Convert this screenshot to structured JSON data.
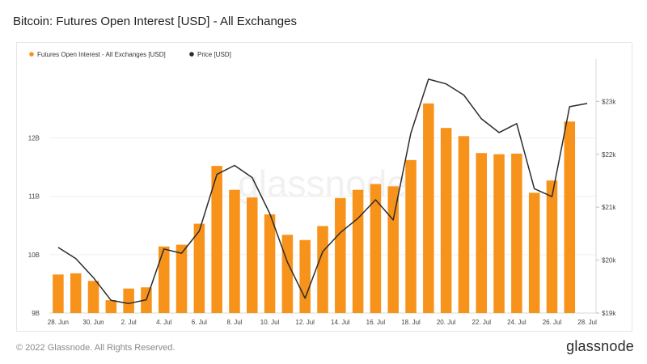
{
  "header": {
    "title": "Bitcoin: Futures Open Interest [USD] - All Exchanges"
  },
  "footer": {
    "copyright": "© 2022 Glassnode. All Rights Reserved.",
    "brand": "glassnode"
  },
  "watermark": "glassnode",
  "colors": {
    "bar": "#f7931a",
    "line": "#2b2b2b",
    "grid": "#efefef"
  },
  "chart_data": {
    "type": "bar",
    "title": "Bitcoin: Futures Open Interest [USD] - All Exchanges",
    "categories": [
      "28 Jun",
      "29 Jun",
      "30 Jun",
      "1 Jul",
      "2 Jul",
      "3 Jul",
      "4 Jul",
      "5 Jul",
      "6 Jul",
      "7 Jul",
      "8 Jul",
      "9 Jul",
      "10 Jul",
      "11 Jul",
      "12 Jul",
      "13 Jul",
      "14 Jul",
      "15 Jul",
      "16 Jul",
      "17 Jul",
      "18 Jul",
      "19 Jul",
      "20 Jul",
      "21 Jul",
      "22 Jul",
      "23 Jul",
      "24 Jul",
      "25 Jul",
      "26 Jul",
      "27 Jul",
      "28 Jul"
    ],
    "x_tick_labels": [
      "28. Jun",
      "30. Jun",
      "2. Jul",
      "4. Jul",
      "6. Jul",
      "8. Jul",
      "10. Jul",
      "12. Jul",
      "14. Jul",
      "16. Jul",
      "18. Jul",
      "20. Jul",
      "22. Jul",
      "24. Jul",
      "26. Jul",
      "28. Jul"
    ],
    "legend": {
      "placement": "top-left",
      "entries": [
        "Futures Open Interest - All Exchanges [USD]",
        "Price [USD]"
      ]
    },
    "y_left": {
      "tick_labels": [
        "9B",
        "10B",
        "11B",
        "12B"
      ],
      "tick_values": [
        9,
        10,
        11,
        12
      ],
      "range": [
        9.0,
        13.35
      ]
    },
    "y_right": {
      "tick_labels": [
        "$19k",
        "$20k",
        "$21k",
        "$22k",
        "$23k"
      ],
      "tick_values": [
        19000,
        20000,
        21000,
        22000,
        23000
      ],
      "range": [
        19000,
        23800
      ]
    },
    "grid": true,
    "series": [
      {
        "name": "Futures Open Interest - All Exchanges [USD]",
        "type": "bar",
        "axis": "left",
        "values": [
          9.66,
          9.68,
          9.55,
          9.22,
          9.42,
          9.44,
          10.14,
          10.17,
          10.53,
          11.52,
          11.11,
          10.98,
          10.69,
          10.34,
          10.25,
          10.49,
          10.97,
          11.11,
          11.21,
          11.17,
          11.62,
          12.59,
          12.17,
          12.03,
          11.74,
          11.72,
          11.73,
          11.06,
          11.27,
          12.28,
          null
        ]
      },
      {
        "name": "Price [USD]",
        "type": "line",
        "axis": "right",
        "values": [
          20240,
          20030,
          19670,
          19240,
          19180,
          19250,
          20210,
          20130,
          20550,
          21620,
          21790,
          21560,
          20880,
          19960,
          19280,
          20160,
          20520,
          20790,
          21140,
          20760,
          22400,
          23420,
          23330,
          23120,
          22670,
          22410,
          22580,
          21350,
          21200,
          22900,
          22960
        ]
      }
    ]
  }
}
